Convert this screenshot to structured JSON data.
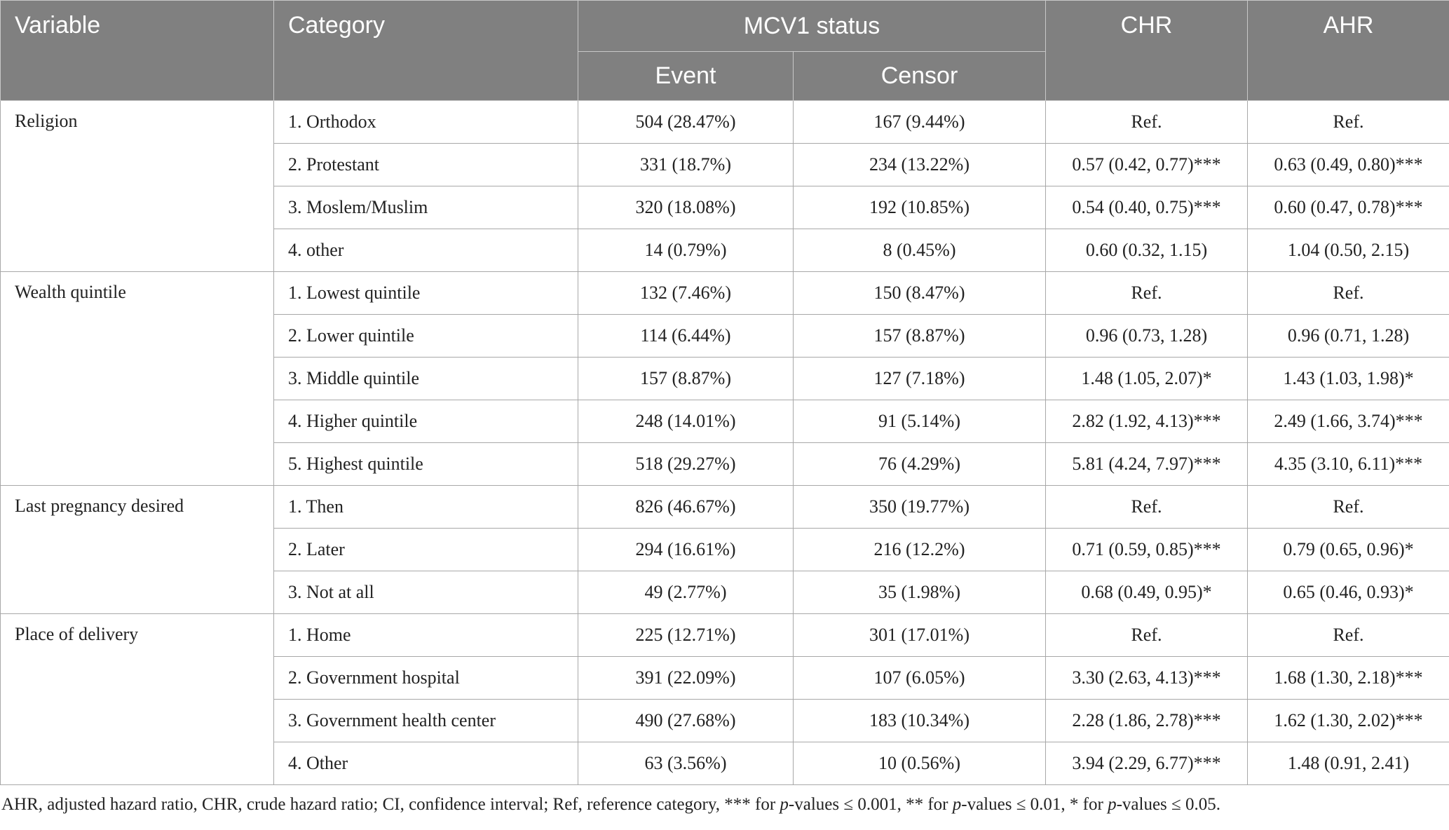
{
  "table": {
    "header": {
      "variable": "Variable",
      "category": "Category",
      "mcv1": "MCV1 status",
      "event": "Event",
      "censor": "Censor",
      "chr": "CHR",
      "ahr": "AHR"
    },
    "groups": [
      {
        "variable": "Religion",
        "rows": [
          [
            "1. Orthodox",
            "504 (28.47%)",
            "167 (9.44%)",
            "Ref.",
            "Ref."
          ],
          [
            "2. Protestant",
            "331 (18.7%)",
            "234 (13.22%)",
            "0.57 (0.42, 0.77)***",
            "0.63 (0.49, 0.80)***"
          ],
          [
            "3. Moslem/Muslim",
            "320 (18.08%)",
            "192 (10.85%)",
            "0.54 (0.40, 0.75)***",
            "0.60 (0.47, 0.78)***"
          ],
          [
            "4. other",
            "14 (0.79%)",
            "8 (0.45%)",
            "0.60 (0.32, 1.15)",
            "1.04 (0.50, 2.15)"
          ]
        ]
      },
      {
        "variable": "Wealth quintile",
        "rows": [
          [
            "1. Lowest quintile",
            "132 (7.46%)",
            "150 (8.47%)",
            "Ref.",
            "Ref."
          ],
          [
            "2. Lower quintile",
            "114 (6.44%)",
            "157 (8.87%)",
            "0.96 (0.73, 1.28)",
            "0.96 (0.71, 1.28)"
          ],
          [
            "3. Middle quintile",
            "157 (8.87%)",
            "127 (7.18%)",
            "1.48 (1.05, 2.07)*",
            "1.43 (1.03, 1.98)*"
          ],
          [
            "4. Higher quintile",
            "248 (14.01%)",
            "91 (5.14%)",
            "2.82 (1.92, 4.13)***",
            "2.49 (1.66, 3.74)***"
          ],
          [
            "5. Highest quintile",
            "518 (29.27%)",
            "76 (4.29%)",
            "5.81 (4.24, 7.97)***",
            "4.35 (3.10, 6.11)***"
          ]
        ]
      },
      {
        "variable": "Last pregnancy desired",
        "rows": [
          [
            "1. Then",
            "826 (46.67%)",
            "350 (19.77%)",
            "Ref.",
            "Ref."
          ],
          [
            "2. Later",
            "294 (16.61%)",
            "216 (12.2%)",
            "0.71 (0.59, 0.85)***",
            "0.79 (0.65, 0.96)*"
          ],
          [
            "3. Not at all",
            "49 (2.77%)",
            "35 (1.98%)",
            "0.68 (0.49, 0.95)*",
            "0.65 (0.46, 0.93)*"
          ]
        ]
      },
      {
        "variable": "Place of delivery",
        "rows": [
          [
            "1. Home",
            "225 (12.71%)",
            "301 (17.01%)",
            "Ref.",
            "Ref."
          ],
          [
            "2. Government hospital",
            "391 (22.09%)",
            "107 (6.05%)",
            "3.30 (2.63, 4.13)***",
            "1.68 (1.30, 2.18)***"
          ],
          [
            "3. Government health center",
            "490 (27.68%)",
            "183 (10.34%)",
            "2.28 (1.86, 2.78)***",
            "1.62 (1.30, 2.02)***"
          ],
          [
            "4. Other",
            "63 (3.56%)",
            "10 (0.56%)",
            "3.94 (2.29, 6.77)***",
            "1.48 (0.91, 2.41)"
          ]
        ]
      }
    ]
  },
  "footnote": [
    {
      "text": "AHR, adjusted hazard ratio, CHR, crude hazard ratio; CI, confidence interval; Ref, reference category, *** for ",
      "italic": false
    },
    {
      "text": "p",
      "italic": true
    },
    {
      "text": "-values ≤ 0.001, ** for ",
      "italic": false
    },
    {
      "text": "p",
      "italic": true
    },
    {
      "text": "-values ≤ 0.01, * for ",
      "italic": false
    },
    {
      "text": "p",
      "italic": true
    },
    {
      "text": "-values ≤ 0.05.",
      "italic": false
    }
  ]
}
